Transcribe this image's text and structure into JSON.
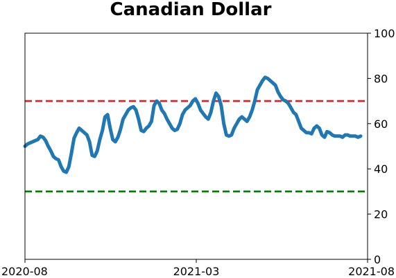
{
  "chart_data": {
    "type": "line",
    "title": "Canadian Dollar",
    "xlabel": "",
    "ylabel": "",
    "x_ticks": [
      "2020-08",
      "2021-03",
      "2021-08"
    ],
    "y_ticks": [
      "0",
      "20",
      "40",
      "60",
      "80",
      "100"
    ],
    "ylim": [
      0,
      100
    ],
    "y_axis_position": "right",
    "grid": false,
    "colors": {
      "line": "#1f77b4",
      "upper_threshold": "#d62728",
      "lower_threshold": "#008000"
    },
    "thresholds": [
      {
        "value": 70,
        "style": "dashed",
        "color": "#d62728"
      },
      {
        "value": 30,
        "style": "dashed",
        "color": "#008000"
      }
    ],
    "series": [
      {
        "values": [
          50,
          51,
          51.5,
          52,
          52.5,
          53,
          54.5,
          54,
          52.5,
          50,
          48,
          45.5,
          44.5,
          44,
          41,
          39,
          38.5,
          41,
          47,
          53.5,
          56,
          58,
          57,
          56,
          55,
          52,
          46,
          45.5,
          48,
          53,
          57,
          63,
          64,
          58,
          53,
          52,
          54,
          57.5,
          62,
          64,
          66,
          67,
          67.5,
          66,
          62,
          57,
          56.5,
          58,
          59,
          61,
          68,
          70,
          69,
          66,
          64.5,
          62,
          60,
          58,
          57,
          57.5,
          60,
          64,
          66,
          67,
          68,
          70,
          71,
          69,
          66,
          64.5,
          63,
          62,
          65,
          70,
          73.5,
          72,
          68,
          60,
          55,
          54.5,
          55,
          58,
          60,
          62,
          63,
          62,
          61,
          63,
          66,
          70,
          75,
          77,
          79,
          80.5,
          80,
          79,
          78,
          77,
          74,
          72,
          70.5,
          70,
          69,
          67,
          65,
          64,
          61,
          58,
          57,
          56,
          56,
          55.5,
          58,
          59,
          58,
          55,
          54,
          56.5,
          56,
          55,
          54.5,
          54.5,
          54.5,
          54,
          55,
          55,
          54.5,
          54.5,
          54.5,
          54,
          54.5
        ]
      }
    ]
  }
}
